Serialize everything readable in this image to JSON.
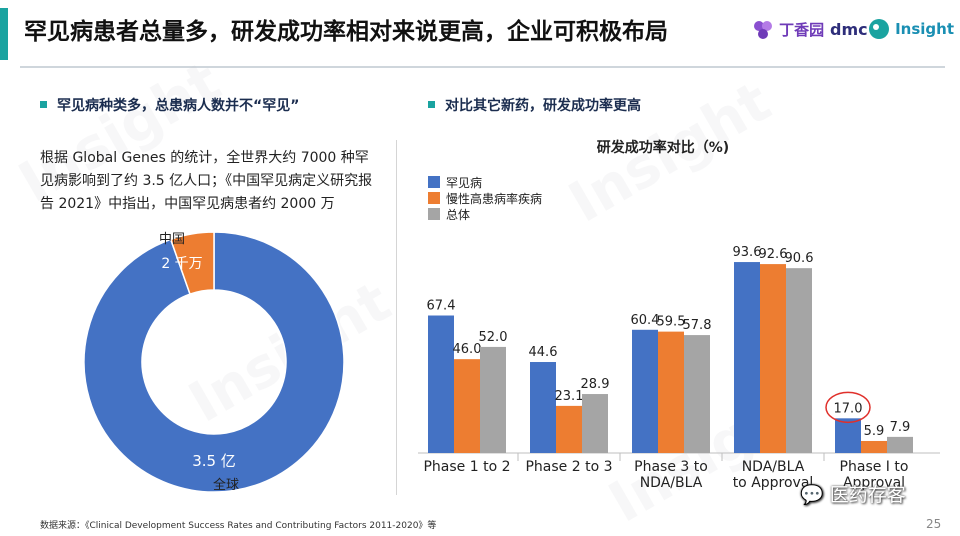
{
  "header": {
    "title": "罕见病患者总量多，研发成功率相对来说更高，企业可积极布局",
    "logos": [
      "丁香园",
      "dmc",
      "Insight"
    ]
  },
  "left_section": {
    "heading": "罕见病种类多，总患病人数并不“罕见”",
    "description": "根据 Global Genes 的统计，全世界大约 7000 种罕见病影响到了约 3.5 亿人口；《中国罕见病定义研究报告 2021》中指出，中国罕见病患者约 2000 万"
  },
  "right_section": {
    "heading": "对比其它新药，研发成功率更高"
  },
  "watermark": "Insight",
  "footer": {
    "source": "数据来源：《Clinical Development Success Rates and Contributing Factors 2011-2020》等",
    "page_number": "25",
    "badge": "医药存客"
  },
  "chart_data": [
    {
      "type": "pie",
      "style": "donut",
      "slices": [
        {
          "name": "全球",
          "value": 3.5,
          "label": "3.5 亿",
          "color": "#4472c4"
        },
        {
          "name": "中国",
          "value": 0.2,
          "label": "2 千万",
          "color": "#ed7d31"
        }
      ]
    },
    {
      "type": "bar",
      "title": "研发成功率对比（%)",
      "categories": [
        "Phase 1 to 2",
        "Phase 2 to 3",
        "Phase 3 to NDA/BLA",
        "NDA/BLA to Approval",
        "Phase I to Approval"
      ],
      "category_lines": [
        [
          "Phase 1 to 2"
        ],
        [
          "Phase 2 to 3"
        ],
        [
          "Phase 3 to",
          "NDA/BLA"
        ],
        [
          "NDA/BLA",
          "to Approval"
        ],
        [
          "Phase I to",
          "Approval"
        ]
      ],
      "series": [
        {
          "name": "罕见病",
          "color": "#4472c4",
          "values": [
            67.4,
            44.6,
            60.4,
            93.6,
            17.0
          ]
        },
        {
          "name": "慢性高患病率疾病",
          "color": "#ed7d31",
          "values": [
            46.0,
            23.1,
            59.5,
            92.6,
            5.9
          ]
        },
        {
          "name": "总体",
          "color": "#a5a5a5",
          "values": [
            52.0,
            28.9,
            57.8,
            90.6,
            7.9
          ]
        }
      ],
      "value_labels": [
        [
          "67.4",
          "46.0",
          "52.0"
        ],
        [
          "44.6",
          "23.1",
          "28.9"
        ],
        [
          "60.4",
          "59.5",
          "57.8"
        ],
        [
          "93.6",
          "92.6",
          "90.6"
        ],
        [
          "17.0",
          "5.9",
          "7.9"
        ]
      ],
      "highlight": {
        "category": "Phase I to Approval",
        "series": "罕见病",
        "value": 17.0
      },
      "ylim": [
        0,
        100
      ],
      "legend": "top-left"
    }
  ]
}
